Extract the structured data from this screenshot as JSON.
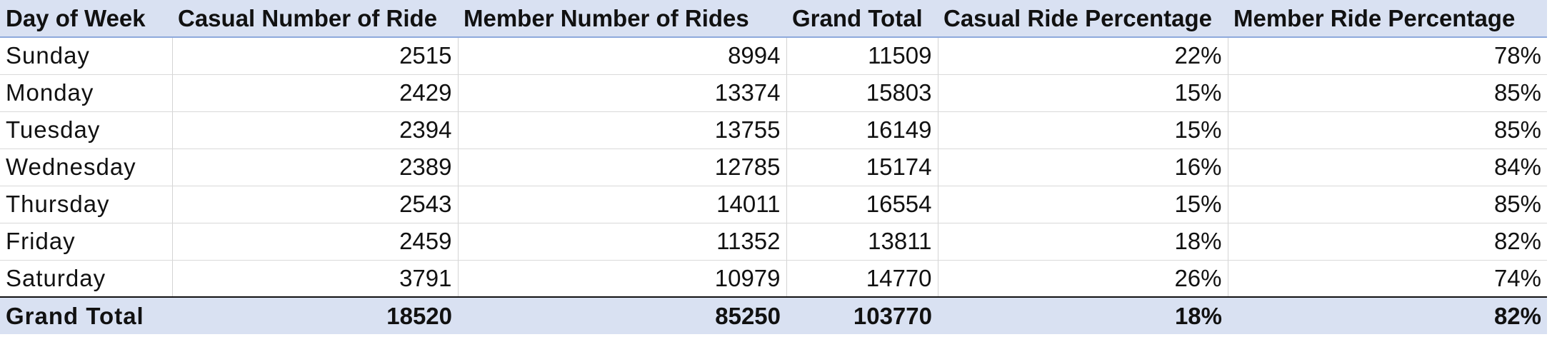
{
  "table": {
    "headers": [
      "Day of Week",
      "Casual Number of Ride",
      "Member Number of Rides",
      "Grand Total",
      "Casual Ride Percentage",
      "Member Ride Percentage"
    ],
    "rows": [
      [
        "Sunday",
        "2515",
        "8994",
        "11509",
        "22%",
        "78%"
      ],
      [
        "Monday",
        "2429",
        "13374",
        "15803",
        "15%",
        "85%"
      ],
      [
        "Tuesday",
        "2394",
        "13755",
        "16149",
        "15%",
        "85%"
      ],
      [
        "Wednesday",
        "2389",
        "12785",
        "15174",
        "16%",
        "84%"
      ],
      [
        "Thursday",
        "2543",
        "14011",
        "16554",
        "15%",
        "85%"
      ],
      [
        "Friday",
        "2459",
        "11352",
        "13811",
        "18%",
        "82%"
      ],
      [
        "Saturday",
        "3791",
        "10979",
        "14770",
        "26%",
        "74%"
      ]
    ],
    "total": [
      "Grand Total",
      "18520",
      "85250",
      "103770",
      "18%",
      "82%"
    ]
  },
  "colors": {
    "header_fill": "#d9e1f2",
    "total_fill": "#d9e1f2",
    "gridline": "#d4d4d4"
  }
}
